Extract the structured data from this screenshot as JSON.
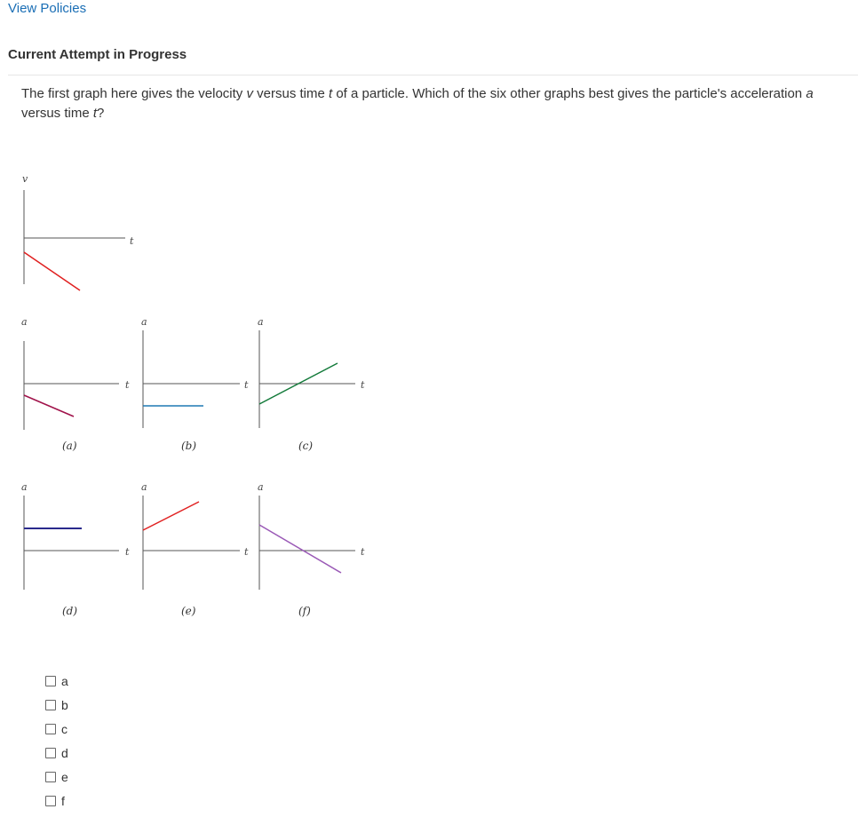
{
  "header": {
    "view_policies": "View Policies",
    "attempt_heading": "Current Attempt in Progress"
  },
  "question": {
    "part1": "The first graph here gives the velocity ",
    "v": "v",
    "part2": " versus time ",
    "t": "t",
    "part3": " of a particle. Which of the six other graphs best gives the particle's acceleration ",
    "a": "a",
    "part4": " versus time ",
    "t2": "t",
    "part5": "?"
  },
  "figure": {
    "velocity_graph": {
      "y_label": "v",
      "x_label": "t",
      "line_color": "#e02020"
    },
    "graphs": [
      {
        "id": "a",
        "caption": "(a)",
        "y_label": "a",
        "x_label": "t",
        "line_color": "#a0124a"
      },
      {
        "id": "b",
        "caption": "(b)",
        "y_label": "a",
        "x_label": "t",
        "line_color": "#1e78b4"
      },
      {
        "id": "c",
        "caption": "(c)",
        "y_label": "a",
        "x_label": "t",
        "line_color": "#137a3a"
      },
      {
        "id": "d",
        "caption": "(d)",
        "y_label": "a",
        "x_label": "t",
        "line_color": "#2a2a8c"
      },
      {
        "id": "e",
        "caption": "(e)",
        "y_label": "a",
        "x_label": "t",
        "line_color": "#e02020"
      },
      {
        "id": "f",
        "caption": "(f)",
        "y_label": "a",
        "x_label": "t",
        "line_color": "#9a59b6"
      }
    ]
  },
  "choices": [
    {
      "label": "a",
      "checked": false
    },
    {
      "label": "b",
      "checked": false
    },
    {
      "label": "c",
      "checked": false
    },
    {
      "label": "d",
      "checked": false
    },
    {
      "label": "e",
      "checked": false
    },
    {
      "label": "f",
      "checked": false
    }
  ]
}
